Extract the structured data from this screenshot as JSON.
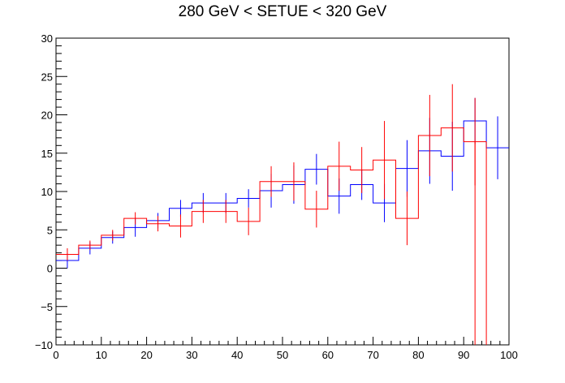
{
  "chart_data": {
    "type": "histogram",
    "title": "280 GeV < SETUE < 320 GeV",
    "xlabel": "",
    "ylabel": "",
    "xlim": [
      0,
      100
    ],
    "ylim": [
      -10,
      30
    ],
    "x_ticks": [
      0,
      10,
      20,
      30,
      40,
      50,
      60,
      70,
      80,
      90,
      100
    ],
    "y_ticks": [
      -10,
      -5,
      0,
      5,
      10,
      15,
      20,
      25,
      30
    ],
    "x_tick_labels": [
      "0",
      "10",
      "20",
      "30",
      "40",
      "50",
      "60",
      "70",
      "80",
      "90",
      "100"
    ],
    "y_tick_labels": [
      "−10",
      "−5",
      "0",
      "5",
      "10",
      "15",
      "20",
      "25",
      "30"
    ],
    "grid": false,
    "legend": false,
    "bin_edges": [
      0,
      5,
      10,
      15,
      20,
      25,
      30,
      35,
      40,
      45,
      50,
      55,
      60,
      65,
      70,
      75,
      80,
      85,
      90,
      95,
      100
    ],
    "series": [
      {
        "color": "#0000ff",
        "values": [
          1.0,
          2.6,
          4.0,
          5.3,
          6.2,
          7.8,
          8.5,
          8.5,
          9.1,
          10.1,
          10.9,
          12.9,
          9.4,
          10.9,
          8.5,
          13.0,
          15.3,
          14.6,
          19.2,
          15.7
        ],
        "errors": [
          1.0,
          0.8,
          0.8,
          1.2,
          1.0,
          1.1,
          1.3,
          1.3,
          1.2,
          2.2,
          2.5,
          2.0,
          2.3,
          2.0,
          2.5,
          3.7,
          4.3,
          4.5,
          3.0,
          4.1
        ]
      },
      {
        "color": "#ff0000",
        "values": [
          1.8,
          3.0,
          4.3,
          6.5,
          5.8,
          5.5,
          7.4,
          7.4,
          6.1,
          11.3,
          11.3,
          7.7,
          13.3,
          12.8,
          14.1,
          6.5,
          17.3,
          18.3,
          16.5,
          null
        ],
        "errors": [
          0.8,
          0.6,
          0.7,
          0.8,
          1.0,
          1.5,
          1.5,
          1.5,
          1.8,
          2.0,
          2.5,
          2.4,
          3.2,
          3.0,
          5.1,
          3.5,
          5.3,
          5.7,
          5.7,
          null
        ]
      }
    ],
    "red_last_bin": {
      "x_range": [
        90,
        95
      ],
      "value": 16.5,
      "error_down_to": -10
    }
  }
}
